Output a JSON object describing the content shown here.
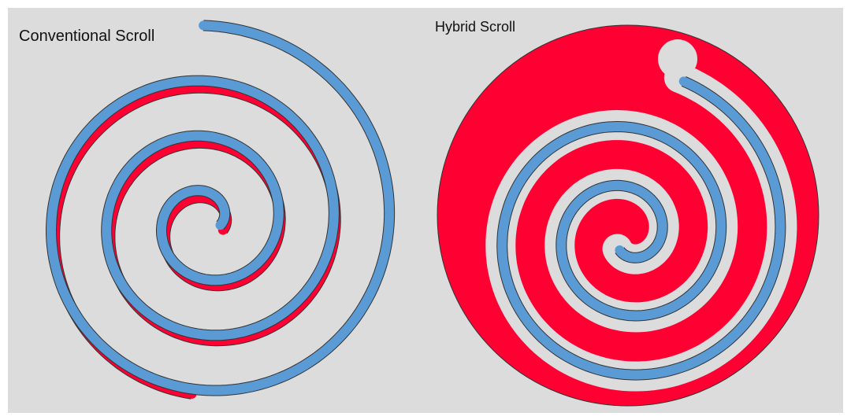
{
  "labels": {
    "conventional": "Conventional Scroll",
    "hybrid": "Hybrid Scroll"
  }
}
